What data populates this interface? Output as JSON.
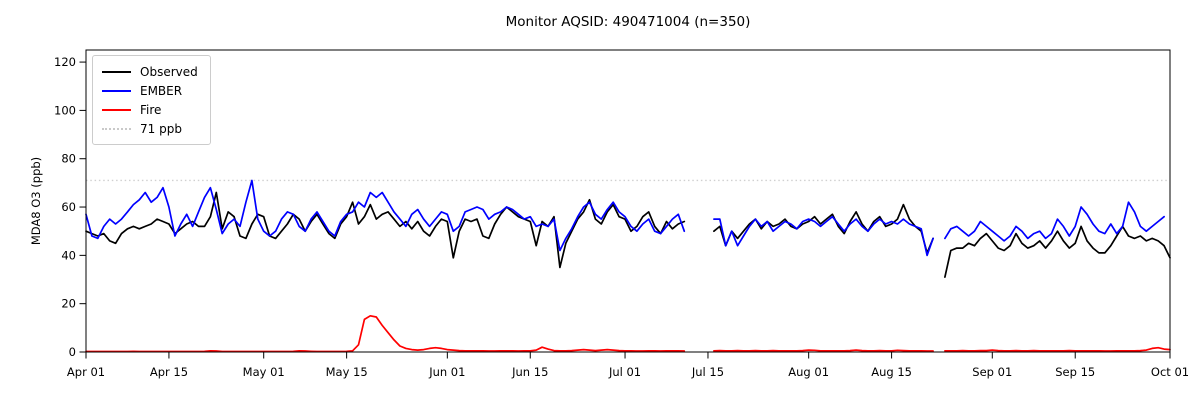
{
  "chart_data": {
    "type": "line",
    "title": "Monitor AQSID: 490471004 (n=350)",
    "xlabel": "",
    "ylabel": "MDA8 O3 (ppb)",
    "ylim": [
      0,
      125
    ],
    "yticks": [
      0,
      20,
      40,
      60,
      80,
      100,
      120
    ],
    "x_range_days": [
      0,
      183
    ],
    "x_tick_days": [
      0,
      14,
      30,
      44,
      61,
      75,
      91,
      105,
      122,
      136,
      153,
      167,
      183
    ],
    "x_tick_labels": [
      "Apr 01",
      "Apr 15",
      "May 01",
      "May 15",
      "Jun 01",
      "Jun 15",
      "Jul 01",
      "Jul 15",
      "Aug 01",
      "Aug 15",
      "Sep 01",
      "Sep 15",
      "Oct 01"
    ],
    "grid": false,
    "legend_position": "upper-left",
    "reference_line": {
      "value": 71,
      "label": "71 ppb",
      "color": "#d0d0d0",
      "style": "dotted"
    },
    "legend": {
      "items": [
        {
          "label": "Observed",
          "color": "#000000",
          "style": "solid"
        },
        {
          "label": "EMBER",
          "color": "#0000ff",
          "style": "solid"
        },
        {
          "label": "Fire",
          "color": "#ff0000",
          "style": "solid"
        },
        {
          "label": "71 ppb",
          "color": "#c9c9c9",
          "style": "dotted"
        }
      ]
    },
    "series": [
      {
        "name": "Observed",
        "color": "#000000",
        "values": [
          50,
          49,
          48,
          49,
          46,
          45,
          49,
          51,
          52,
          51,
          52,
          53,
          55,
          54,
          53,
          49,
          51,
          53,
          54,
          52,
          52,
          56,
          66,
          51,
          58,
          56,
          48,
          47,
          53,
          57,
          56,
          48,
          47,
          50,
          53,
          57,
          55,
          50,
          54,
          57,
          53,
          49,
          47,
          53,
          56,
          62,
          53,
          56,
          61,
          55,
          57,
          58,
          55,
          52,
          54,
          51,
          54,
          50,
          48,
          52,
          55,
          54,
          39,
          50,
          55,
          54,
          55,
          48,
          47,
          53,
          57,
          60,
          58,
          56,
          55,
          54,
          44,
          54,
          52,
          56,
          35,
          45,
          50,
          55,
          58,
          63,
          55,
          53,
          58,
          61,
          56,
          55,
          50,
          52,
          56,
          58,
          52,
          49,
          54,
          51,
          53,
          54,
          null,
          null,
          null,
          null,
          50,
          52,
          44,
          50,
          47,
          50,
          53,
          55,
          51,
          54,
          52,
          53,
          55,
          52,
          51,
          53,
          54,
          56,
          53,
          55,
          57,
          52,
          49,
          54,
          58,
          53,
          50,
          54,
          56,
          52,
          53,
          55,
          61,
          55,
          52,
          50,
          41,
          47,
          null,
          31,
          42,
          43,
          43,
          45,
          44,
          47,
          49,
          46,
          43,
          42,
          44,
          49,
          45,
          43,
          44,
          46,
          43,
          46,
          50,
          46,
          43,
          45,
          52,
          46,
          43,
          41,
          41,
          44,
          48,
          52,
          48,
          47,
          48,
          46,
          47,
          46,
          44,
          39
        ]
      },
      {
        "name": "EMBER",
        "color": "#0000ff",
        "values": [
          57,
          48,
          47,
          52,
          55,
          53,
          55,
          58,
          61,
          63,
          66,
          62,
          64,
          68,
          60,
          48,
          53,
          57,
          52,
          58,
          64,
          68,
          59,
          49,
          53,
          55,
          52,
          62,
          71,
          55,
          50,
          48,
          50,
          55,
          58,
          57,
          52,
          50,
          55,
          58,
          54,
          50,
          48,
          54,
          57,
          58,
          62,
          60,
          66,
          64,
          66,
          62,
          58,
          55,
          52,
          57,
          59,
          55,
          52,
          55,
          58,
          57,
          50,
          52,
          58,
          59,
          60,
          59,
          55,
          57,
          58,
          60,
          59,
          57,
          55,
          56,
          52,
          53,
          52,
          55,
          42,
          47,
          51,
          56,
          60,
          62,
          57,
          55,
          59,
          62,
          58,
          56,
          52,
          50,
          53,
          55,
          50,
          49,
          52,
          55,
          57,
          50,
          null,
          null,
          null,
          null,
          55,
          55,
          44,
          50,
          44,
          48,
          52,
          55,
          52,
          54,
          50,
          52,
          54,
          53,
          51,
          54,
          55,
          54,
          52,
          54,
          56,
          53,
          50,
          53,
          55,
          52,
          50,
          53,
          55,
          53,
          54,
          53,
          55,
          53,
          52,
          51,
          40,
          47,
          null,
          47,
          51,
          52,
          50,
          48,
          50,
          54,
          52,
          50,
          48,
          46,
          48,
          52,
          50,
          47,
          49,
          50,
          47,
          49,
          55,
          52,
          48,
          52,
          60,
          57,
          53,
          50,
          49,
          53,
          49,
          52,
          62,
          58,
          52,
          50,
          52,
          54,
          56,
          null
        ]
      },
      {
        "name": "Fire",
        "color": "#ff0000",
        "values": [
          0.2,
          0.2,
          0.2,
          0.2,
          0.2,
          0.2,
          0.2,
          0.2,
          0.3,
          0.2,
          0.2,
          0.2,
          0.2,
          0.2,
          0.2,
          0.2,
          0.2,
          0.2,
          0.2,
          0.2,
          0.3,
          0.5,
          0.4,
          0.2,
          0.2,
          0.2,
          0.2,
          0.2,
          0.2,
          0.2,
          0.2,
          0.2,
          0.2,
          0.2,
          0.2,
          0.3,
          0.5,
          0.4,
          0.3,
          0.2,
          0.2,
          0.2,
          0.2,
          0.2,
          0.3,
          0.5,
          3,
          13.5,
          15,
          14.5,
          11,
          8,
          5,
          2.5,
          1.5,
          1,
          0.8,
          1,
          1.5,
          1.8,
          1.5,
          1,
          0.8,
          0.6,
          0.5,
          0.5,
          0.5,
          0.5,
          0.4,
          0.4,
          0.5,
          0.5,
          0.5,
          0.4,
          0.5,
          0.5,
          0.8,
          2,
          1.2,
          0.6,
          0.5,
          0.5,
          0.6,
          0.8,
          1,
          0.8,
          0.6,
          0.8,
          1,
          0.8,
          0.6,
          0.5,
          0.5,
          0.4,
          0.4,
          0.5,
          0.5,
          0.4,
          0.5,
          0.5,
          0.5,
          0.4,
          null,
          null,
          null,
          null,
          0.5,
          0.6,
          0.5,
          0.5,
          0.6,
          0.5,
          0.5,
          0.6,
          0.5,
          0.5,
          0.6,
          0.5,
          0.5,
          0.5,
          0.5,
          0.6,
          0.8,
          0.7,
          0.5,
          0.5,
          0.5,
          0.5,
          0.5,
          0.6,
          0.8,
          0.6,
          0.5,
          0.5,
          0.6,
          0.5,
          0.5,
          0.7,
          0.6,
          0.5,
          0.5,
          0.5,
          0.4,
          0.4,
          null,
          0.5,
          0.5,
          0.5,
          0.6,
          0.5,
          0.5,
          0.6,
          0.6,
          0.8,
          0.6,
          0.5,
          0.5,
          0.6,
          0.5,
          0.5,
          0.6,
          0.5,
          0.5,
          0.5,
          0.5,
          0.5,
          0.6,
          0.5,
          0.5,
          0.5,
          0.5,
          0.5,
          0.4,
          0.4,
          0.5,
          0.5,
          0.5,
          0.5,
          0.6,
          0.8,
          1.5,
          1.8,
          1.2,
          1
        ]
      }
    ]
  },
  "layout_colors": {
    "axis": "#000000",
    "background": "#ffffff",
    "tick_label": "#000000"
  }
}
